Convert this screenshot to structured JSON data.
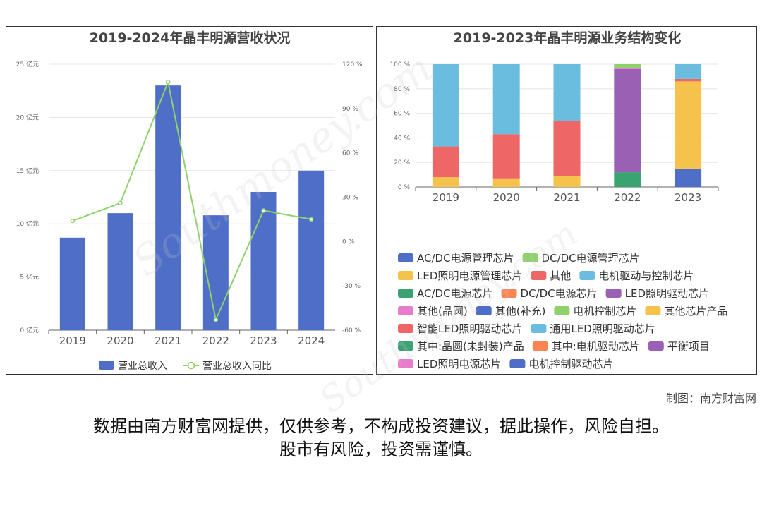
{
  "chart_data": [
    {
      "type": "bar",
      "title": "2019-2024年晶丰明源营收状况",
      "categories": [
        "2019",
        "2020",
        "2021",
        "2022",
        "2023",
        "2024"
      ],
      "series": [
        {
          "name": "营业总收入",
          "type": "bar",
          "axis": "left",
          "color": "#4e6ec7",
          "values": [
            8.7,
            11.0,
            23.0,
            10.8,
            13.0,
            15.0
          ]
        },
        {
          "name": "营业总收入同比",
          "type": "line",
          "axis": "right",
          "color": "#8fd16a",
          "values": [
            14,
            26,
            108,
            -53,
            21,
            15
          ]
        }
      ],
      "y_left": {
        "min": 0,
        "max": 25,
        "ticks": [
          0,
          5,
          10,
          15,
          20,
          25
        ],
        "tick_labels": [
          "0 亿元",
          "5 亿元",
          "10 亿元",
          "15 亿元",
          "20 亿元",
          "25 亿元"
        ]
      },
      "y_right": {
        "min": -60,
        "max": 120,
        "ticks": [
          -60,
          -30,
          0,
          30,
          60,
          90,
          120
        ],
        "tick_labels": [
          "-60 %",
          "-30 %",
          "0 %",
          "30 %",
          "60 %",
          "90 %",
          "120 %"
        ]
      },
      "legend_position": "bottom",
      "grid": true
    },
    {
      "type": "bar",
      "stacked": true,
      "title": "2019-2023年晶丰明源业务结构变化",
      "categories": [
        "2019",
        "2020",
        "2021",
        "2022",
        "2023"
      ],
      "y": {
        "min": 0,
        "max": 100,
        "ticks": [
          0,
          20,
          40,
          60,
          80,
          100
        ],
        "tick_labels": [
          "0 %",
          "20 %",
          "40 %",
          "60 %",
          "80 %",
          "100 %"
        ]
      },
      "series": [
        {
          "name": "AC/DC电源管理芯片",
          "color": "#4e6ec7",
          "values": [
            0,
            0,
            0,
            0,
            15
          ]
        },
        {
          "name": "DC/DC电源管理芯片",
          "color": "#8fd16a",
          "values": [
            0,
            0,
            0,
            0,
            0
          ]
        },
        {
          "name": "LED照明电源管理芯片",
          "color": "#f5c24c",
          "values": [
            8,
            7,
            9,
            0,
            0
          ]
        },
        {
          "name": "其他",
          "color": "#ee6666",
          "values": [
            25,
            36,
            45,
            0,
            0
          ]
        },
        {
          "name": "电机驱动与控制芯片",
          "color": "#6bbde0",
          "values": [
            67,
            57,
            46,
            0,
            0
          ]
        },
        {
          "name": "AC/DC电源芯片",
          "color": "#3ba272",
          "values": [
            0,
            0,
            0,
            12,
            0
          ]
        },
        {
          "name": "DC/DC电源芯片",
          "color": "#fc8452",
          "values": [
            0,
            0,
            0,
            0,
            0
          ]
        },
        {
          "name": "LED照明驱动芯片",
          "color": "#9a60b4",
          "values": [
            0,
            0,
            0,
            84,
            0
          ]
        },
        {
          "name": "其他(晶圆)",
          "color": "#ea7ccc",
          "values": [
            0,
            0,
            0,
            1,
            0
          ]
        },
        {
          "name": "其他(补充)",
          "color": "#4e6ec7",
          "values": [
            0,
            0,
            0,
            0,
            0
          ]
        },
        {
          "name": "电机控制芯片",
          "color": "#8fd16a",
          "values": [
            0,
            0,
            0,
            3,
            0
          ]
        },
        {
          "name": "其他芯片产品",
          "color": "#f5c24c",
          "values": [
            0,
            0,
            0,
            0,
            71
          ]
        },
        {
          "name": "智能LED照明驱动芯片",
          "color": "#ee6666",
          "values": [
            0,
            0,
            0,
            0,
            2
          ]
        },
        {
          "name": "通用LED照明驱动芯片",
          "color": "#6bbde0",
          "values": [
            0,
            0,
            0,
            0,
            12
          ]
        },
        {
          "name": "其中:晶圆(未封装)产品",
          "color": "#3ba272",
          "values": [
            0,
            0,
            0,
            0,
            0
          ]
        },
        {
          "name": "其中:电机驱动芯片",
          "color": "#fc8452",
          "values": [
            0,
            0,
            0,
            0,
            0
          ]
        },
        {
          "name": "平衡项目",
          "color": "#9a60b4",
          "values": [
            0,
            0,
            0,
            0,
            0
          ]
        },
        {
          "name": "LED照明电源芯片",
          "color": "#ea7ccc",
          "values": [
            0,
            0,
            0,
            0,
            0
          ]
        },
        {
          "name": "电机控制驱动芯片",
          "color": "#4e6ec7",
          "values": [
            0,
            0,
            0,
            0,
            0
          ]
        }
      ],
      "legend_position": "bottom"
    }
  ],
  "credit": "制图：南方财富网",
  "disclaimer": {
    "line1": "数据由南方财富网提供，仅供参考，不构成投资建议，据此操作，风险自担。",
    "line2": "股市有风险，投资需谨慎。"
  }
}
